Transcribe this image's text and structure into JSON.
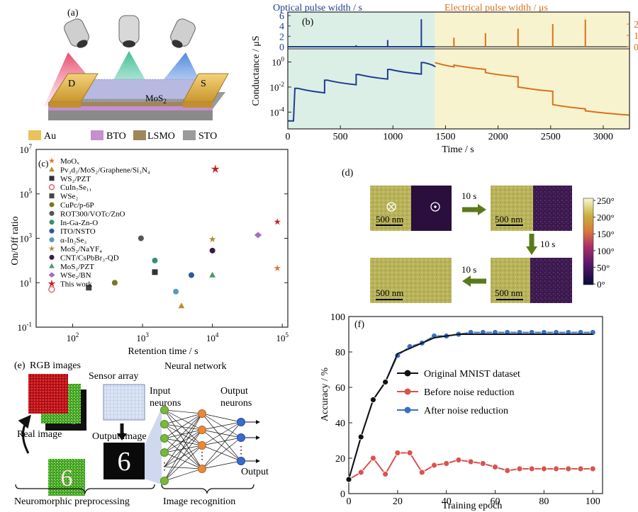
{
  "panel_letters": {
    "a": "(a)",
    "b": "(b)",
    "c": "(c)",
    "d": "(d)",
    "e": "(e)",
    "f": "(f)"
  },
  "panel_a": {
    "electrode_left": "D",
    "electrode_right": "S",
    "channel": "MoS",
    "channel_sub": "2",
    "legend": [
      {
        "label": "Au",
        "color": "#e8c25a"
      },
      {
        "label": "BTO",
        "color": "#c58fd0"
      },
      {
        "label": "LSMO",
        "color": "#a0875a"
      },
      {
        "label": "STO",
        "color": "#9a9a9a"
      }
    ]
  },
  "panel_b": {
    "top_left_title": "Optical pulse width / s",
    "top_right_title": "Electrical pulse width / μs",
    "ylabel": "Conductance / μS",
    "xlabel": "Time / s",
    "top_left_ticks": [
      "0",
      "2",
      "4",
      "6"
    ],
    "top_right_ticks": [
      "0",
      "1",
      "2"
    ],
    "bottom_ticks": [
      "10",
      "10",
      "10"
    ],
    "bottom_tick_exps": [
      "-4",
      "-2",
      "0"
    ],
    "x_ticks": [
      "0",
      "500",
      "1000",
      "1500",
      "2000",
      "2500",
      "3000"
    ],
    "colors": {
      "optical": "#1f3c8f",
      "electrical": "#d9711c",
      "bg_optical": "#dcefe6",
      "bg_electrical": "#f8f3cf"
    },
    "chart_data": {
      "type": "line",
      "xlim": [
        0,
        3250
      ],
      "optical_until": 1400,
      "optical_pulses": [
        {
          "t": 350,
          "h": 0.1
        },
        {
          "t": 650,
          "h": 0.3
        },
        {
          "t": 950,
          "h": 1.3
        },
        {
          "t": 1270,
          "h": 5.3
        }
      ],
      "electrical_pulses": [
        {
          "t": 1580,
          "h": 0.8
        },
        {
          "t": 1880,
          "h": 1.2
        },
        {
          "t": 2190,
          "h": 1.6
        },
        {
          "t": 2520,
          "h": 2.0
        },
        {
          "t": 2830,
          "h": 2.4
        }
      ],
      "conductance_steps_log10": [
        -4.7,
        -2.1,
        -1.45,
        -1.0,
        -0.6,
        -0.05,
        -0.25,
        -0.85,
        -2.0,
        -3.4,
        -3.9
      ]
    }
  },
  "panel_c": {
    "ylabel": "On/Off ratio",
    "xlabel": "Retention time / s",
    "y_ticks": [
      "10",
      "10",
      "10",
      "10",
      "10"
    ],
    "y_tick_exps": [
      "-1",
      "1",
      "3",
      "5",
      "7"
    ],
    "x_ticks": [
      "10",
      "10",
      "10",
      "10"
    ],
    "x_tick_exps": [
      "2",
      "3",
      "4",
      "5"
    ],
    "chart_data": {
      "type": "scatter",
      "x_scale": "log",
      "y_scale": "log",
      "xlim": [
        30,
        120000
      ],
      "ylim": [
        0.1,
        10000000
      ],
      "series": [
        {
          "name": "MoOₓ",
          "x": 85000,
          "y": 45,
          "color": "#e0702a",
          "marker": "star"
        },
        {
          "name": "Pv₃d₃/MoS₂/Graphene/Si₃N₄",
          "x": 3600,
          "y": 0.9,
          "color": "#b8902a",
          "marker": "tri"
        },
        {
          "name": "WS₂/PZT",
          "x": 1500,
          "y": 30,
          "color": "#333333",
          "marker": "sq"
        },
        {
          "name": "CuIn₇Se₁₁",
          "x": 50,
          "y": 5,
          "color": "#e06a6a",
          "marker": "ring"
        },
        {
          "name": "WSe₂",
          "x": 170,
          "y": 6,
          "color": "#444444",
          "marker": "sq"
        },
        {
          "name": "CuPc/p-6P",
          "x": 400,
          "y": 10,
          "color": "#777722",
          "marker": "circ"
        },
        {
          "name": "ROT300/VOTc/ZnO",
          "x": 950,
          "y": 1000,
          "color": "#555555",
          "marker": "circ"
        },
        {
          "name": "In-Ga-Zn-O",
          "x": 1500,
          "y": 100,
          "color": "#3a8f6a",
          "marker": "circ"
        },
        {
          "name": "ITO/NSTO",
          "x": 5000,
          "y": 22,
          "color": "#2a5a9a",
          "marker": "circ"
        },
        {
          "name": "α-In₂Se₃",
          "x": 3000,
          "y": 4,
          "color": "#5a9ab8",
          "marker": "circ"
        },
        {
          "name": "MoS₂/NaYF₄",
          "x": 10000,
          "y": 900,
          "color": "#9a8a3a",
          "marker": "star"
        },
        {
          "name": "CNT/CsPbBr₃-QD",
          "x": 10000,
          "y": 280,
          "color": "#3a1a4a",
          "marker": "circ"
        },
        {
          "name": "MoS₂/PZT",
          "x": 10000,
          "y": 22,
          "color": "#4a9a6a",
          "marker": "tri"
        },
        {
          "name": "WSe₂/BN",
          "x": 45000,
          "y": 1400,
          "color": "#a070c0",
          "marker": "diamond"
        },
        {
          "name": "This work",
          "x": 11000,
          "y": 1300000,
          "color": "#c0202a",
          "marker": "star"
        },
        {
          "name": "",
          "x": 85000,
          "y": 5500,
          "color": "#c0202a",
          "marker": "star"
        }
      ]
    }
  },
  "panel_d": {
    "scale_labels": [
      "500 nm",
      "500 nm",
      "500 nm",
      "500 nm"
    ],
    "step_labels": [
      "10 s",
      "10 s",
      "10 s"
    ],
    "colorbar_ticks": [
      "250°",
      "200°",
      "150°",
      "100°",
      "50°",
      "0°"
    ]
  },
  "panel_e": {
    "rgb_images": "RGB images",
    "sensor_array": "Sensor array",
    "neural_network": "Neural network",
    "input_neurons": "Input neurons",
    "output_neurons": "Output neurons",
    "real_image": "Real image",
    "output_image": "Output image",
    "output": "Output",
    "digit": "6",
    "bracket_left": "Neuromorphic preprocessing",
    "bracket_right": "Image recognition"
  },
  "panel_f": {
    "ylabel": "Accuracy / %",
    "xlabel": "Training epoch",
    "x_ticks": [
      "0",
      "20",
      "40",
      "60",
      "80",
      "100"
    ],
    "y_ticks": [
      "0",
      "20",
      "40",
      "60",
      "80",
      "100"
    ],
    "chart_data": {
      "type": "line",
      "xlim": [
        0,
        104
      ],
      "ylim": [
        0,
        100
      ],
      "series": [
        {
          "name": "Original MNIST dataset",
          "color": "#111111",
          "x": [
            0,
            5,
            10,
            15,
            20,
            25,
            30,
            35,
            40,
            45,
            50,
            55,
            60,
            65,
            70,
            75,
            80,
            85,
            90,
            95,
            100
          ],
          "values": [
            8,
            32,
            53,
            63,
            79,
            82,
            85,
            88,
            89,
            90,
            90,
            90,
            90,
            90,
            90,
            90,
            90,
            90,
            90,
            90,
            90
          ]
        },
        {
          "name": "Before noise reduction",
          "color": "#d9534f",
          "x": [
            0,
            5,
            10,
            15,
            20,
            25,
            30,
            35,
            40,
            45,
            50,
            55,
            60,
            65,
            70,
            75,
            80,
            85,
            90,
            95,
            100
          ],
          "values": [
            8,
            12,
            20,
            11,
            23,
            23,
            12,
            16,
            17,
            19,
            18,
            17,
            15,
            13,
            14,
            14,
            14,
            14,
            14,
            14,
            14
          ]
        },
        {
          "name": "After noise reduction",
          "color": "#3a6fc4",
          "x": [
            0,
            5,
            10,
            15,
            20,
            25,
            30,
            35,
            40,
            45,
            50,
            55,
            60,
            65,
            70,
            75,
            80,
            85,
            90,
            95,
            100
          ],
          "values": [
            8,
            32,
            53,
            63,
            78,
            83,
            85,
            89,
            89,
            90,
            91,
            91,
            91,
            91,
            91,
            91,
            91,
            91,
            91,
            91,
            91
          ]
        }
      ]
    }
  }
}
